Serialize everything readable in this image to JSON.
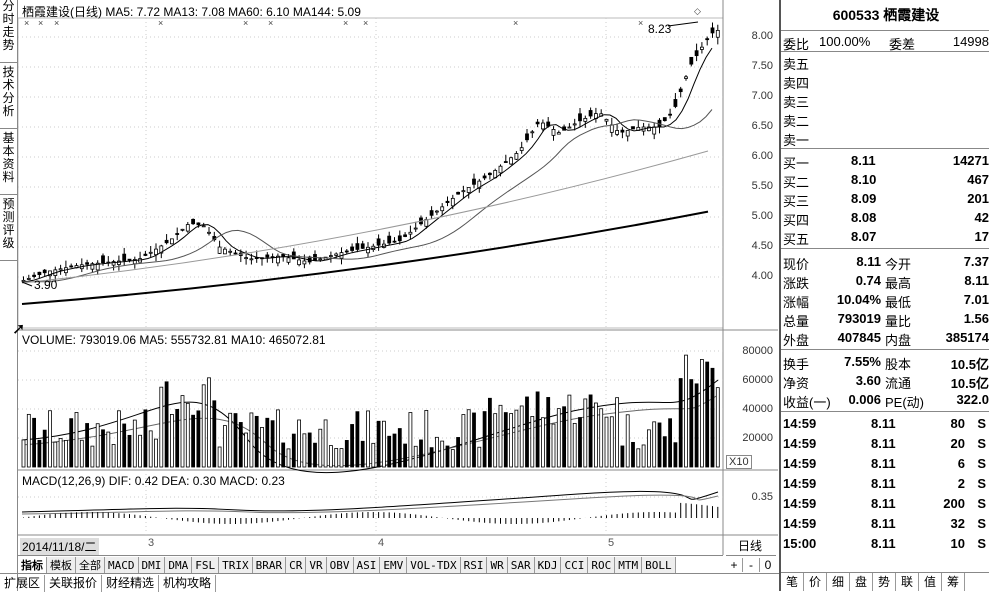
{
  "left_tabs": [
    "分时走势",
    "技术分析",
    "基本资料",
    "预测评级"
  ],
  "price_header": {
    "name": "栖霞建设(日线)",
    "ma5": "MA5: 7.72",
    "ma13": "MA13: 7.08",
    "ma60": "MA60: 6.10",
    "ma144": "MA144: 5.09"
  },
  "price_axis": [
    "8.00",
    "7.50",
    "7.00",
    "6.50",
    "6.00",
    "5.50",
    "5.00",
    "4.50",
    "4.00"
  ],
  "annotations": {
    "high": "8.23",
    "low": "3.90"
  },
  "volume_header": {
    "volume": "VOLUME: 793019.06",
    "ma5": "MA5: 555732.81",
    "ma10": "MA10: 465072.81"
  },
  "volume_axis": [
    "80000",
    "60000",
    "40000",
    "20000"
  ],
  "volume_unit": "X10",
  "macd_header": {
    "name": "MACD(12,26,9)",
    "dif": "DIF: 0.42",
    "dea": "DEA: 0.30",
    "macd": "MACD: 0.23"
  },
  "macd_axis": [
    "0.35"
  ],
  "date_axis": {
    "date": "2014/11/18/二",
    "marks": [
      "3",
      "4",
      "5"
    ]
  },
  "period_label": "日线",
  "indicator_tabs": [
    "指标",
    "模板",
    "全部",
    "MACD",
    "DMI",
    "DMA",
    "FSL",
    "TRIX",
    "BRAR",
    "CR",
    "VR",
    "OBV",
    "ASI",
    "EMV",
    "VOL-TDX",
    "RSI",
    "WR",
    "SAR",
    "KDJ",
    "CCI",
    "ROC",
    "MTM",
    "BOLL"
  ],
  "zoom_buttons": [
    "+",
    "-",
    "0"
  ],
  "bottom_tabs": [
    "扩展区",
    "关联报价",
    "财经精选",
    "机构攻略"
  ],
  "quote": {
    "title": "600533 栖霞建设",
    "weibi_label": "委比",
    "weibi": "100.00%",
    "weicha_label": "委差",
    "weicha": "14998",
    "sell": [
      {
        "label": "卖五",
        "price": "",
        "vol": ""
      },
      {
        "label": "卖四",
        "price": "",
        "vol": ""
      },
      {
        "label": "卖三",
        "price": "",
        "vol": ""
      },
      {
        "label": "卖二",
        "price": "",
        "vol": ""
      },
      {
        "label": "卖一",
        "price": "",
        "vol": ""
      }
    ],
    "buy": [
      {
        "label": "买一",
        "price": "8.11",
        "vol": "14271"
      },
      {
        "label": "买二",
        "price": "8.10",
        "vol": "467"
      },
      {
        "label": "买三",
        "price": "8.09",
        "vol": "201"
      },
      {
        "label": "买四",
        "price": "8.08",
        "vol": "42"
      },
      {
        "label": "买五",
        "price": "8.07",
        "vol": "17"
      }
    ],
    "stats1": [
      {
        "l1": "现价",
        "v1": "8.11",
        "l2": "今开",
        "v2": "7.37"
      },
      {
        "l1": "涨跌",
        "v1": "0.74",
        "l2": "最高",
        "v2": "8.11"
      },
      {
        "l1": "涨幅",
        "v1": "10.04%",
        "l2": "最低",
        "v2": "7.01"
      },
      {
        "l1": "总量",
        "v1": "793019",
        "l2": "量比",
        "v2": "1.56"
      },
      {
        "l1": "外盘",
        "v1": "407845",
        "l2": "内盘",
        "v2": "385174"
      }
    ],
    "stats2": [
      {
        "l1": "换手",
        "v1": "7.55%",
        "l2": "股本",
        "v2": "10.5亿"
      },
      {
        "l1": "净资",
        "v1": "3.60",
        "l2": "流通",
        "v2": "10.5亿"
      },
      {
        "l1": "收益(一)",
        "v1": "0.006",
        "l2": "PE(动)",
        "v2": "322.0"
      }
    ],
    "ticks": [
      {
        "time": "14:59",
        "price": "8.11",
        "vol": "80",
        "dir": "S"
      },
      {
        "time": "14:59",
        "price": "8.11",
        "vol": "20",
        "dir": "S"
      },
      {
        "time": "14:59",
        "price": "8.11",
        "vol": "6",
        "dir": "S"
      },
      {
        "time": "14:59",
        "price": "8.11",
        "vol": "2",
        "dir": "S"
      },
      {
        "time": "14:59",
        "price": "8.11",
        "vol": "200",
        "dir": "S"
      },
      {
        "time": "14:59",
        "price": "8.11",
        "vol": "32",
        "dir": "S"
      },
      {
        "time": "15:00",
        "price": "8.11",
        "vol": "10",
        "dir": "S"
      }
    ],
    "bottom_tabs": [
      "笔",
      "价",
      "细",
      "盘",
      "势",
      "联",
      "值",
      "筹"
    ]
  }
}
